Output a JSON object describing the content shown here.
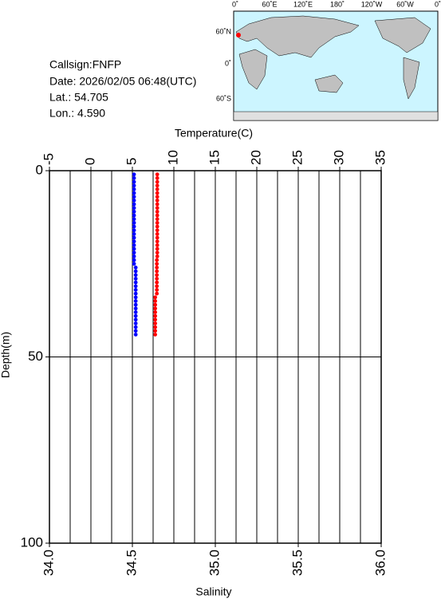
{
  "info": {
    "callsign": "Callsign:FNFP",
    "date": "Date:  2026/02/05 06:48(UTC)",
    "lat": "Lat.:   54.705",
    "lon": "Lon.:    4.590"
  },
  "map": {
    "lon_labels": [
      "0˚",
      "60˚E",
      "120˚E",
      "180˚",
      "120˚W",
      "60˚W",
      "0˚"
    ],
    "lat_labels": [
      "60˚N",
      "0˚",
      "60˚S"
    ]
  },
  "chart_data": {
    "type": "profile",
    "y_label": "Depth(m)",
    "ylim": [
      0,
      100
    ],
    "yticks": [
      0,
      50,
      100
    ],
    "y_inverted": true,
    "grid": true,
    "x2_label": "Temperature(C)",
    "x2lim": [
      -5,
      35
    ],
    "x2ticks": [
      -5,
      0,
      5,
      10,
      15,
      20,
      25,
      30,
      35
    ],
    "x_label": "Salinity",
    "xlim": [
      34,
      36
    ],
    "xticks": [
      {
        "value": 34,
        "label": "34.0"
      },
      34.5,
      {
        "value": 35,
        "label": "35.0"
      },
      35.5,
      {
        "value": 36,
        "label": "36.0"
      }
    ],
    "depth": [
      1,
      2,
      3,
      4,
      5,
      6,
      7,
      8,
      9,
      10,
      11,
      12,
      13,
      14,
      15,
      16,
      17,
      18,
      19,
      20,
      21,
      22,
      23,
      24,
      25,
      26,
      27,
      28,
      29,
      30,
      31,
      32,
      33,
      34,
      35,
      36,
      37,
      38,
      39,
      40,
      41,
      42,
      43,
      44
    ],
    "series": [
      {
        "axis": "x2",
        "color": "#ff0000",
        "values": [
          8.0,
          8.0,
          8.0,
          8.0,
          8.0,
          8.0,
          8.0,
          8.0,
          8.0,
          8.0,
          8.0,
          8.0,
          8.0,
          8.0,
          8.0,
          8.0,
          8.0,
          8.0,
          8.0,
          8.0,
          8.0,
          8.0,
          8.0,
          7.95,
          7.95,
          7.95,
          7.95,
          7.95,
          7.95,
          7.95,
          7.95,
          7.95,
          7.95,
          7.75,
          7.75,
          7.75,
          7.75,
          7.75,
          7.75,
          7.75,
          7.75,
          7.75,
          7.75,
          7.75
        ]
      },
      {
        "axis": "x",
        "color": "#0000ff",
        "values": [
          34.51,
          34.51,
          34.51,
          34.51,
          34.51,
          34.51,
          34.51,
          34.51,
          34.51,
          34.51,
          34.51,
          34.51,
          34.51,
          34.51,
          34.51,
          34.51,
          34.51,
          34.51,
          34.51,
          34.51,
          34.51,
          34.51,
          34.51,
          34.51,
          34.51,
          34.52,
          34.52,
          34.52,
          34.52,
          34.52,
          34.52,
          34.52,
          34.52,
          34.52,
          34.52,
          34.52,
          34.52,
          34.52,
          34.52,
          34.52,
          34.52,
          34.52,
          34.52,
          34.52
        ]
      }
    ]
  }
}
